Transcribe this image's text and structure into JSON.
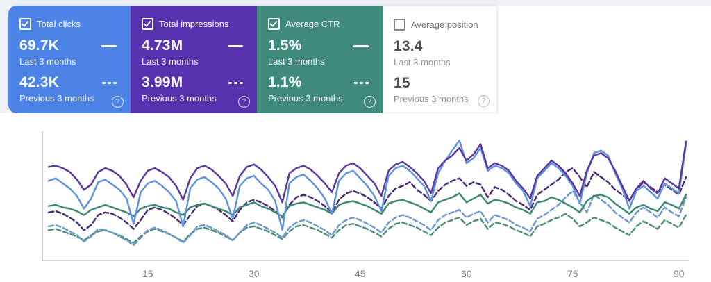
{
  "labels": {
    "period_current": "Last 3 months",
    "period_previous": "Previous 3 months"
  },
  "cards": [
    {
      "label": "Total clicks",
      "checked": true,
      "bg": "#4d82e6",
      "value_current": "69.7K",
      "value_previous": "42.3K"
    },
    {
      "label": "Total impressions",
      "checked": true,
      "bg": "#5732af",
      "value_current": "4.73M",
      "value_previous": "3.99M"
    },
    {
      "label": "Average CTR",
      "checked": true,
      "bg": "#3f8a7a",
      "value_current": "1.5%",
      "value_previous": "1.1%"
    },
    {
      "label": "Average position",
      "checked": false,
      "bg": "#ffffff",
      "value_current": "13.4",
      "value_previous": "15"
    }
  ],
  "chart_data": {
    "type": "line",
    "x_axis": {
      "range": [
        1,
        91
      ],
      "ticks": [
        15,
        30,
        45,
        60,
        75,
        90
      ],
      "unit": "days"
    },
    "y_axis": {
      "labels_shown": false,
      "note": "values normalized 0-100 of plot height; no y-axis labels rendered in UI"
    },
    "grid": false,
    "legend_position": "in-cards",
    "series": [
      {
        "id": "ctr-previous",
        "name": "Average CTR - Previous 3 months",
        "style": "dashed",
        "color": "#4f8f7c",
        "values": [
          24,
          25,
          23,
          21,
          19,
          16,
          20,
          23,
          24,
          22,
          20,
          17,
          14,
          19,
          23,
          25,
          23,
          21,
          18,
          15,
          21,
          25,
          26,
          24,
          22,
          19,
          16,
          22,
          26,
          27,
          25,
          23,
          20,
          17,
          23,
          27,
          28,
          26,
          24,
          21,
          18,
          24,
          28,
          29,
          27,
          25,
          22,
          19,
          25,
          29,
          30,
          28,
          26,
          23,
          20,
          26,
          30,
          32,
          34,
          28,
          31,
          33,
          25,
          30,
          29,
          27,
          24,
          22,
          19,
          27,
          29,
          32,
          34,
          37,
          33,
          27,
          30,
          34,
          32,
          30,
          26,
          23,
          20,
          27,
          31,
          28,
          25,
          32,
          29,
          26,
          36
        ]
      },
      {
        "id": "clicks-previous",
        "name": "Total clicks - Previous 3 months",
        "style": "dashed",
        "color": "#6e99cf",
        "values": [
          27,
          28,
          26,
          23,
          20,
          15,
          19,
          25,
          24,
          22,
          19,
          16,
          12,
          18,
          24,
          26,
          24,
          21,
          18,
          14,
          20,
          27,
          28,
          26,
          23,
          20,
          16,
          22,
          28,
          30,
          28,
          25,
          22,
          18,
          26,
          30,
          32,
          30,
          27,
          24,
          20,
          28,
          32,
          34,
          32,
          29,
          26,
          22,
          30,
          34,
          36,
          34,
          31,
          28,
          24,
          32,
          36,
          38,
          40,
          34,
          37,
          39,
          30,
          36,
          34,
          32,
          28,
          26,
          23,
          33,
          36,
          40,
          44,
          50,
          55,
          46,
          38,
          52,
          48,
          44,
          38,
          34,
          30,
          38,
          42,
          38,
          34,
          42,
          38,
          35,
          50
        ]
      },
      {
        "id": "impressions-previous",
        "name": "Total impressions - Previous 3 months",
        "style": "dashed",
        "color": "#4a2b76",
        "values": [
          38,
          39,
          37,
          34,
          30,
          24,
          28,
          36,
          38,
          37,
          34,
          30,
          25,
          32,
          40,
          42,
          40,
          37,
          33,
          28,
          36,
          43,
          45,
          43,
          40,
          36,
          31,
          40,
          46,
          48,
          46,
          43,
          39,
          34,
          44,
          50,
          52,
          50,
          47,
          43,
          38,
          48,
          53,
          55,
          53,
          50,
          46,
          41,
          51,
          57,
          59,
          62,
          56,
          52,
          47,
          55,
          60,
          63,
          65,
          59,
          62,
          60,
          50,
          58,
          56,
          52,
          47,
          44,
          40,
          52,
          56,
          60,
          64,
          70,
          73,
          66,
          58,
          70,
          66,
          62,
          56,
          52,
          48,
          56,
          62,
          58,
          54,
          60,
          56,
          52,
          66
        ]
      },
      {
        "id": "ctr-current",
        "name": "Average CTR - Last 3 months",
        "style": "solid",
        "color": "#3f8a73",
        "values": [
          43,
          44,
          42,
          41,
          39,
          36,
          40,
          42,
          44,
          42,
          40,
          38,
          35,
          41,
          43,
          44,
          42,
          41,
          38,
          36,
          42,
          44,
          45,
          43,
          41,
          39,
          36,
          42,
          44,
          46,
          43,
          41,
          38,
          35,
          43,
          45,
          46,
          44,
          42,
          40,
          37,
          44,
          46,
          47,
          45,
          43,
          40,
          37,
          45,
          47,
          48,
          46,
          44,
          41,
          38,
          46,
          48,
          50,
          53,
          46,
          49,
          52,
          45,
          48,
          47,
          45,
          42,
          40,
          37,
          46,
          47,
          50,
          48,
          45,
          42,
          38,
          47,
          51,
          52,
          50,
          45,
          41,
          37,
          42,
          44,
          41,
          39,
          46,
          44,
          41,
          52
        ]
      },
      {
        "id": "clicks-current",
        "name": "Total clicks - Last 3 months",
        "style": "solid",
        "color": "#6093dc",
        "values": [
          63,
          65,
          61,
          57,
          51,
          41,
          49,
          62,
          64,
          60,
          56,
          49,
          29,
          54,
          61,
          63,
          59,
          54,
          47,
          27,
          57,
          64,
          66,
          62,
          57,
          49,
          33,
          59,
          65,
          67,
          61,
          56,
          47,
          24,
          61,
          66,
          68,
          63,
          57,
          49,
          37,
          63,
          69,
          71,
          65,
          59,
          51,
          39,
          67,
          73,
          75,
          71,
          65,
          59,
          47,
          69,
          79,
          87,
          95,
          77,
          81,
          89,
          71,
          75,
          73,
          69,
          61,
          55,
          43,
          65,
          71,
          77,
          73,
          67,
          59,
          45,
          69,
          85,
          87,
          83,
          69,
          57,
          41,
          55,
          59,
          54,
          49,
          61,
          57,
          53,
          92
        ]
      },
      {
        "id": "impressions-current",
        "name": "Total impressions - Last 3 months",
        "style": "solid",
        "color": "#5b3a9e",
        "values": [
          74,
          75,
          73,
          70,
          64,
          56,
          60,
          70,
          73,
          71,
          67,
          60,
          50,
          63,
          71,
          73,
          70,
          66,
          59,
          48,
          65,
          73,
          75,
          72,
          67,
          61,
          51,
          67,
          74,
          76,
          72,
          66,
          59,
          46,
          69,
          73,
          75,
          72,
          67,
          61,
          54,
          69,
          75,
          77,
          73,
          67,
          61,
          51,
          71,
          76,
          78,
          74,
          69,
          63,
          53,
          73,
          79,
          83,
          89,
          79,
          84,
          92,
          73,
          77,
          75,
          71,
          63,
          57,
          49,
          67,
          73,
          79,
          75,
          69,
          61,
          51,
          71,
          83,
          85,
          81,
          71,
          59,
          47,
          57,
          63,
          57,
          53,
          65,
          61,
          57,
          94
        ]
      }
    ]
  }
}
